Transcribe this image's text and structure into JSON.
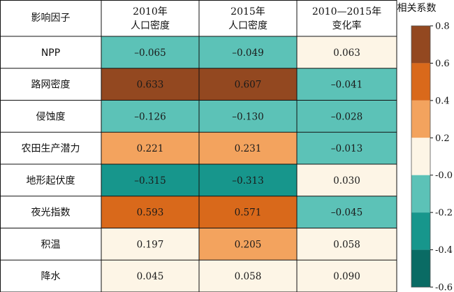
{
  "chart_data": {
    "type": "heatmap",
    "corner_label": "影响因子",
    "columns": [
      [
        "2010年",
        "人口密度"
      ],
      [
        "2015年",
        "人口密度"
      ],
      [
        "2010—2015年",
        "变化率"
      ]
    ],
    "rows": [
      "NPP",
      "路网密度",
      "侵蚀度",
      "农田生产潜力",
      "地形起伏度",
      "夜光指数",
      "积温",
      "降水"
    ],
    "values": [
      [
        -0.065,
        -0.049,
        0.063
      ],
      [
        0.633,
        0.607,
        -0.041
      ],
      [
        -0.126,
        -0.13,
        -0.028
      ],
      [
        0.221,
        0.231,
        -0.013
      ],
      [
        -0.315,
        -0.313,
        0.03
      ],
      [
        0.593,
        0.571,
        -0.045
      ],
      [
        0.197,
        0.205,
        0.058
      ],
      [
        0.045,
        0.058,
        0.09
      ]
    ],
    "value_labels": [
      [
        "–0.065",
        "–0.049",
        "0.063"
      ],
      [
        "0.633",
        "0.607",
        "–0.041"
      ],
      [
        "–0.126",
        "–0.130",
        "–0.028"
      ],
      [
        "0.221",
        "0.231",
        "–0.013"
      ],
      [
        "–0.315",
        "–0.313",
        "0.030"
      ],
      [
        "0.593",
        "0.571",
        "–0.045"
      ],
      [
        "0.197",
        "0.205",
        "0.058"
      ],
      [
        "0.045",
        "0.058",
        "0.090"
      ]
    ],
    "colorbar": {
      "title": "相关系数",
      "min": -0.6,
      "max": 0.8,
      "ticks": [
        0.8,
        0.6,
        0.4,
        0.2,
        0.0,
        -0.2,
        -0.4,
        -0.6
      ],
      "tick_labels": [
        "0.8",
        "0.6",
        "0.4",
        "0.2",
        "-0.0",
        "-0.2",
        "-0.4",
        "-0.6"
      ],
      "bins": [
        {
          "from": 0.6,
          "to": 0.8,
          "color": "#934820"
        },
        {
          "from": 0.4,
          "to": 0.6,
          "color": "#d9691b"
        },
        {
          "from": 0.2,
          "to": 0.4,
          "color": "#f3a35e"
        },
        {
          "from": 0.0,
          "to": 0.2,
          "color": "#fdf5e6"
        },
        {
          "from": -0.2,
          "to": 0.0,
          "color": "#5cc2b7"
        },
        {
          "from": -0.4,
          "to": -0.2,
          "color": "#17968c"
        },
        {
          "from": -0.6,
          "to": -0.4,
          "color": "#0a6b64"
        }
      ]
    }
  }
}
